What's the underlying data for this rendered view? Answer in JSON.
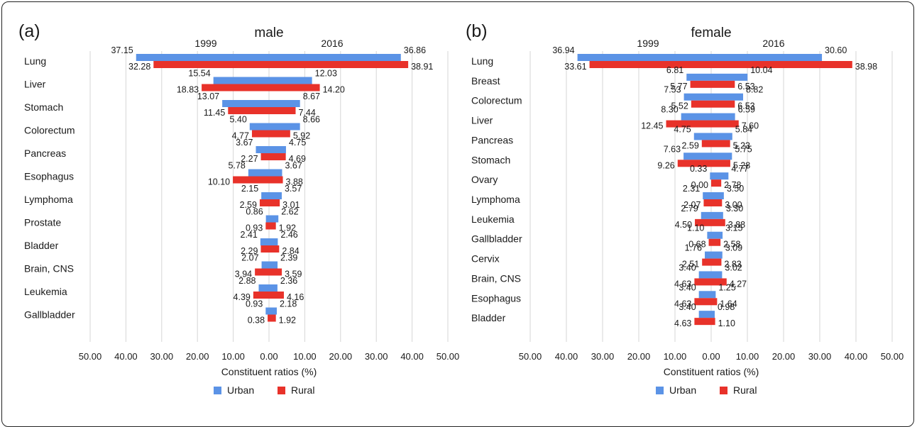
{
  "colors": {
    "urban": "#5b93e6",
    "rural": "#e8322a",
    "grid": "#d6d6d6"
  },
  "chart_data": [
    {
      "type": "bar",
      "panel_label": "(a)",
      "title": "male",
      "left_header": "1999",
      "right_header": "2016",
      "xlabel": "Constituent ratios (%)",
      "xticks": [
        "50.00",
        "40.00",
        "30.00",
        "20.00",
        "10.00",
        "0.00",
        "10.00",
        "20.00",
        "30.00",
        "40.00",
        "50.00"
      ],
      "xlim": [
        -50,
        50
      ],
      "legend": [
        "Urban",
        "Rural"
      ],
      "categories": [
        "Lung",
        "Liver",
        "Stomach",
        "Colorectum",
        "Pancreas",
        "Esophagus",
        "Lymphoma",
        "Prostate",
        "Bladder",
        "Brain, CNS",
        "Leukemia",
        "Gallbladder"
      ],
      "series": [
        {
          "name": "Urban",
          "period": "1999",
          "values": [
            "37.15",
            "15.54",
            "13.07",
            "5.40",
            "3.67",
            "5.78",
            "2.15",
            "0.86",
            "2.41",
            "2.07",
            "2.88",
            "0.93"
          ]
        },
        {
          "name": "Urban",
          "period": "2016",
          "values": [
            "36.86",
            "12.03",
            "8.67",
            "8.66",
            "4.75",
            "3.67",
            "3.57",
            "2.62",
            "2.46",
            "2.39",
            "2.36",
            "2.18"
          ]
        },
        {
          "name": "Rural",
          "period": "1999",
          "values": [
            "32.28",
            "18.83",
            "11.45",
            "4.77",
            "2.27",
            "10.10",
            "2.59",
            "0.93",
            "2.29",
            "3.94",
            "4.39",
            "0.38"
          ]
        },
        {
          "name": "Rural",
          "period": "2016",
          "values": [
            "38.91",
            "14.20",
            "7.44",
            "5.92",
            "4.69",
            "3.88",
            "3.01",
            "1.92",
            "2.84",
            "3.59",
            "4.16",
            "1.92"
          ]
        }
      ]
    },
    {
      "type": "bar",
      "panel_label": "(b)",
      "title": "female",
      "left_header": "1999",
      "right_header": "2016",
      "xlabel": "Constituent ratios (%)",
      "xticks": [
        "50.00",
        "40.00",
        "30.00",
        "20.00",
        "10.00",
        "0.00",
        "10.00",
        "20.00",
        "30.00",
        "40.00",
        "50.00"
      ],
      "xlim": [
        -50,
        50
      ],
      "legend": [
        "Urban",
        "Rural"
      ],
      "categories": [
        "Lung",
        "Breast",
        "Colorectum",
        "Liver",
        "Pancreas",
        "Stomach",
        "Ovary",
        "Lymphoma",
        "Leukemia",
        "Gallbladder",
        "Cervix",
        "Brain, CNS",
        "Esophagus",
        "Bladder"
      ],
      "series": [
        {
          "name": "Urban",
          "period": "1999",
          "values": [
            "36.94",
            "6.81",
            "7.53",
            "8.30",
            "4.75",
            "7.63",
            "0.33",
            "2.31",
            "2.79",
            "1.10",
            "1.76",
            "3.40",
            "3.40",
            "3.40"
          ]
        },
        {
          "name": "Urban",
          "period": "2016",
          "values": [
            "30.60",
            "10.04",
            "8.82",
            "6.59",
            "5.84",
            "5.75",
            "4.77",
            "3.50",
            "3.30",
            "3.15",
            "3.09",
            "3.02",
            "1.25",
            "0.98"
          ]
        },
        {
          "name": "Rural",
          "period": "1999",
          "values": [
            "33.61",
            "5.77",
            "5.52",
            "12.45",
            "2.59",
            "9.26",
            "0.00",
            "2.07",
            "4.50",
            "0.68",
            "2.51",
            "4.63",
            "4.63",
            "4.63"
          ]
        },
        {
          "name": "Rural",
          "period": "2016",
          "values": [
            "38.98",
            "6.53",
            "6.53",
            "7.60",
            "5.23",
            "5.28",
            "2.78",
            "3.00",
            "3.88",
            "2.58",
            "2.83",
            "4.27",
            "1.64",
            "1.10"
          ]
        }
      ]
    }
  ]
}
